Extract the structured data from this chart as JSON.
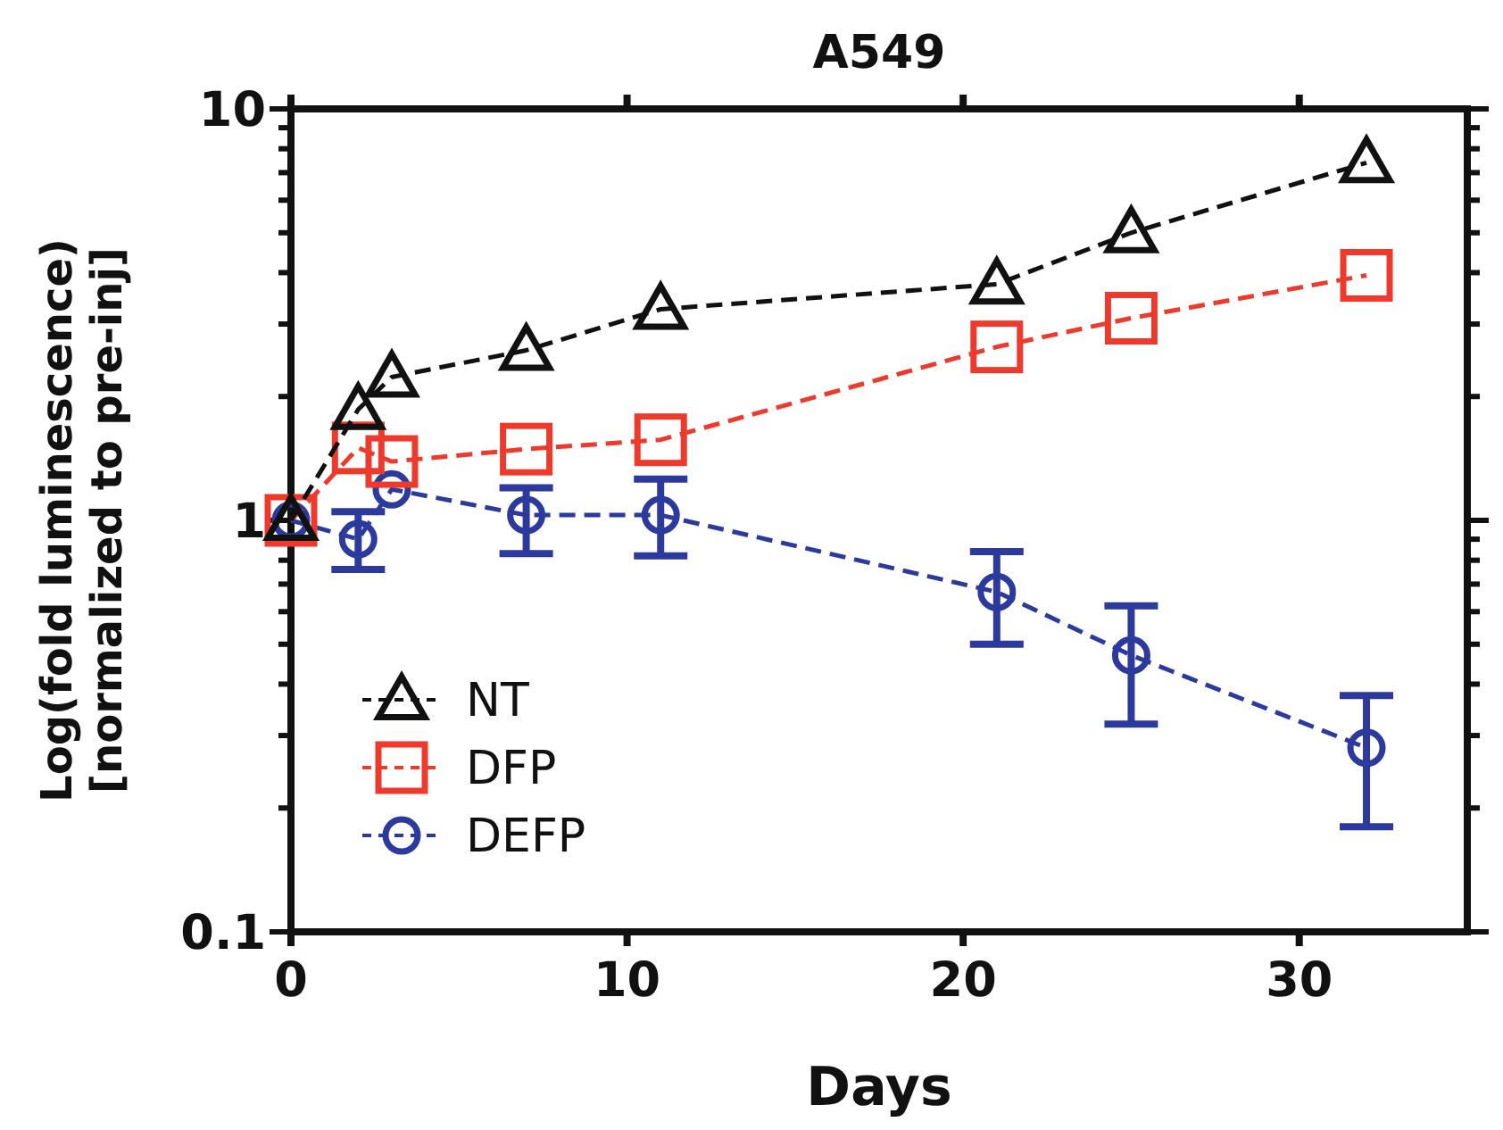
{
  "chart_data": {
    "type": "line",
    "title": "A549",
    "xlabel": "Days",
    "ylabel": "Log(fold luminescence)\n[normalized to pre-inj]",
    "log": "y",
    "xlim": [
      0,
      35
    ],
    "xticks": [
      0,
      10,
      20,
      30
    ],
    "ylim": [
      0.1,
      10
    ],
    "yticks": [
      0.1,
      {
        "value": 0.2,
        "label": null
      },
      {
        "value": 0.3,
        "label": null
      },
      {
        "value": 0.4,
        "label": null
      },
      {
        "value": 0.5,
        "label": null
      },
      {
        "value": 0.6,
        "label": null
      },
      {
        "value": 0.7,
        "label": null
      },
      {
        "value": 0.8,
        "label": null
      },
      {
        "value": 0.9,
        "label": null
      },
      1,
      {
        "value": 2,
        "label": null
      },
      {
        "value": 3,
        "label": null
      },
      {
        "value": 4,
        "label": null
      },
      {
        "value": 5,
        "label": null
      },
      {
        "value": 6,
        "label": null
      },
      {
        "value": 7,
        "label": null
      },
      {
        "value": 8,
        "label": null
      },
      {
        "value": 9,
        "label": null
      },
      10
    ],
    "x": [
      0,
      2,
      3,
      7,
      11,
      21,
      25,
      32
    ],
    "line_style": "dashed",
    "legend": "bottom left",
    "grid": false,
    "series": [
      {
        "name": "NT",
        "color": "#111111",
        "marker": "triangle",
        "values": [
          1,
          1.86,
          2.23,
          2.59,
          3.26,
          3.75,
          5.0,
          7.4
        ]
      },
      {
        "name": "DFP",
        "color": "#ee3a2c",
        "marker": "square",
        "values": [
          1,
          1.5,
          1.39,
          1.49,
          1.57,
          2.64,
          3.1,
          3.94
        ]
      },
      {
        "name": "DEFP",
        "color": "#2b3a9c",
        "marker": "circle",
        "values": [
          1,
          0.9,
          1.19,
          1.03,
          1.03,
          0.67,
          0.47,
          0.28
        ],
        "errors": [
          null,
          [
            0.76,
            1.05
          ],
          null,
          [
            0.83,
            1.2
          ],
          [
            0.82,
            1.26
          ],
          [
            0.5,
            0.84
          ],
          [
            0.32,
            0.62
          ],
          [
            0.18,
            0.375
          ]
        ]
      }
    ]
  }
}
